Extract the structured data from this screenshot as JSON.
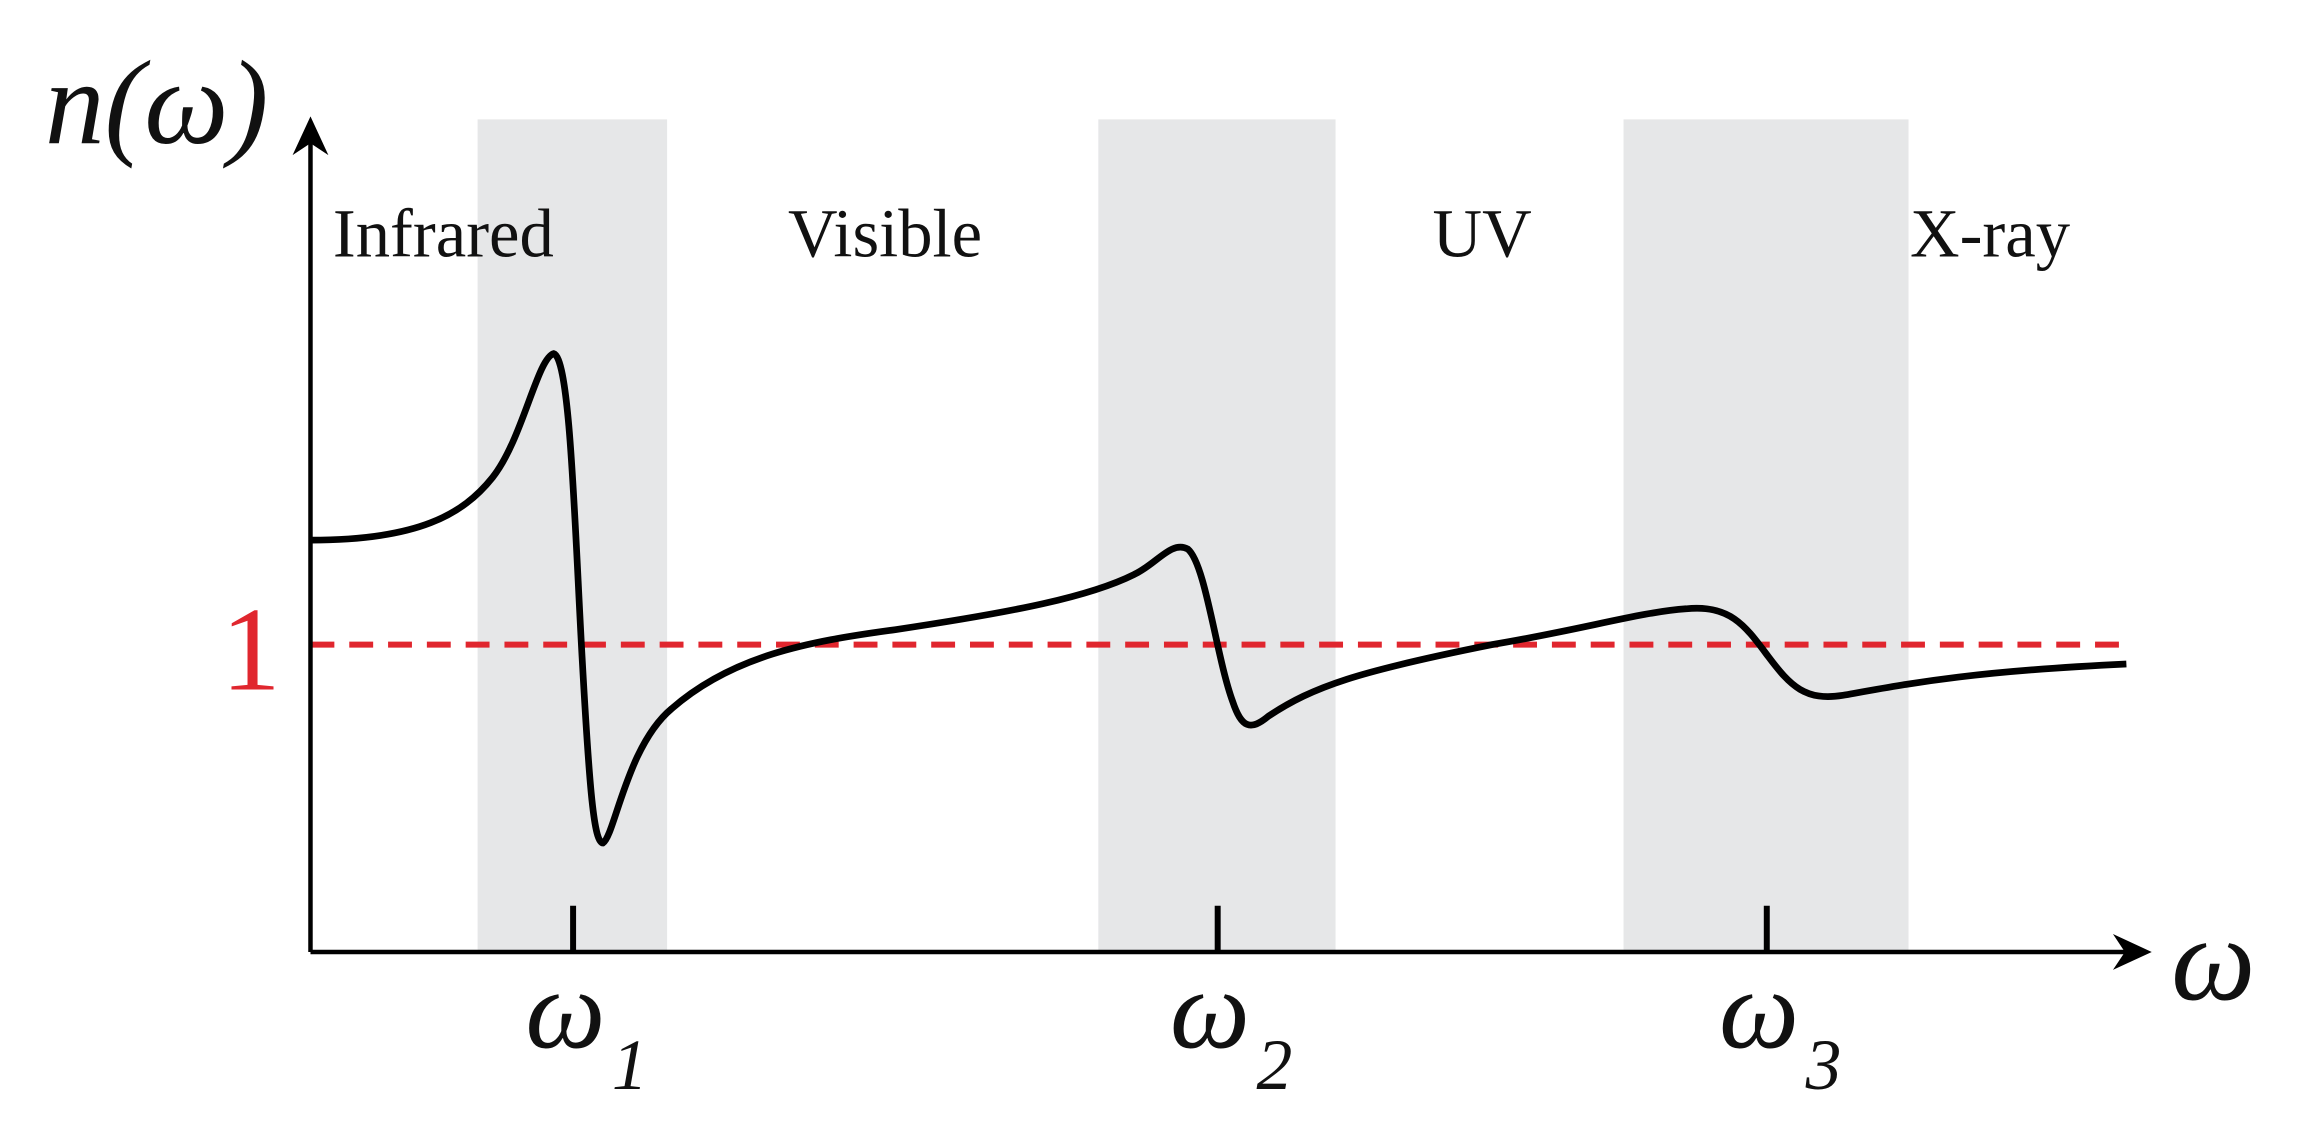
{
  "axes": {
    "y_label": "n(ω)",
    "x_label": "ω"
  },
  "reference": {
    "label": "1"
  },
  "regions": [
    "Infrared",
    "Visible",
    "UV",
    "X-ray"
  ],
  "resonances": [
    {
      "symbol": "ω",
      "subscript": "1"
    },
    {
      "symbol": "ω",
      "subscript": "2"
    },
    {
      "symbol": "ω",
      "subscript": "3"
    }
  ]
}
